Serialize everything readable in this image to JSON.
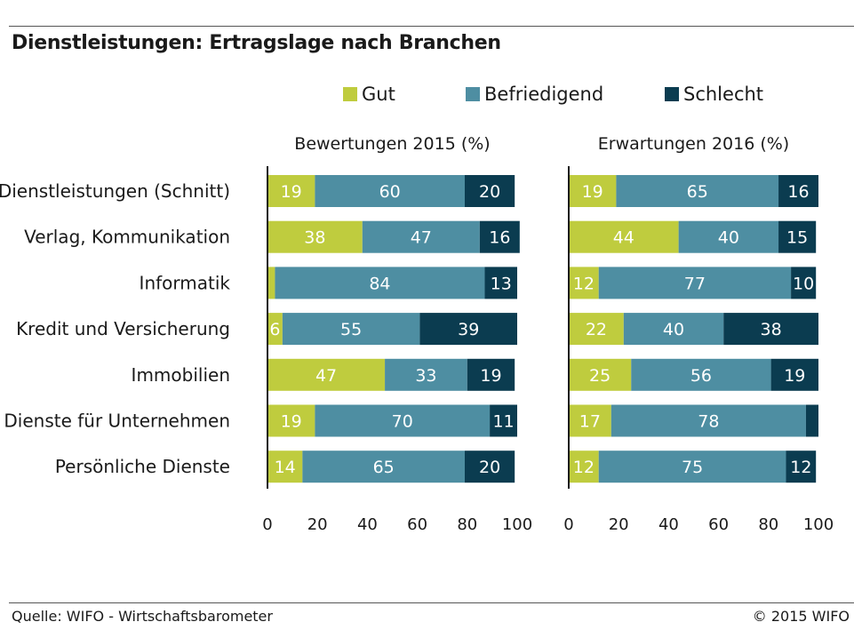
{
  "title": "Dienstleistungen: Ertragslage nach Branchen",
  "legend": [
    {
      "name": "Gut",
      "color": "#bfcc3e"
    },
    {
      "name": "Befriedigend",
      "color": "#4e8ea2"
    },
    {
      "name": "Schlecht",
      "color": "#0b3c50"
    }
  ],
  "chart_data": {
    "type": "bar",
    "orientation": "horizontal",
    "stacked": true,
    "categories": [
      "Dienstleistungen (Schnitt)",
      "Verlag, Kommunikation",
      "Informatik",
      "Kredit und Versicherung",
      "Immobilien",
      "Dienste für Unternehmen",
      "Persönliche Dienste"
    ],
    "xlim": [
      0,
      100
    ],
    "xticks": [
      "0",
      "20",
      "40",
      "60",
      "80",
      "100"
    ],
    "panels": [
      {
        "title": "Bewertungen 2015 (%)",
        "series": [
          {
            "name": "Gut",
            "values": [
              19,
              38,
              3,
              6,
              47,
              19,
              14
            ],
            "labels": [
              "19",
              "38",
              "",
              "6",
              "47",
              "19",
              "14"
            ]
          },
          {
            "name": "Befriedigend",
            "values": [
              60,
              47,
              84,
              55,
              33,
              70,
              65
            ],
            "labels": [
              "60",
              "47",
              "84",
              "55",
              "33",
              "70",
              "65"
            ]
          },
          {
            "name": "Schlecht",
            "values": [
              20,
              16,
              13,
              39,
              19,
              11,
              20
            ],
            "labels": [
              "20",
              "16",
              "13",
              "39",
              "19",
              "11",
              "20"
            ]
          }
        ]
      },
      {
        "title": "Erwartungen 2016 (%)",
        "series": [
          {
            "name": "Gut",
            "values": [
              19,
              44,
              12,
              22,
              25,
              17,
              12
            ],
            "labels": [
              "19",
              "44",
              "12",
              "22",
              "25",
              "17",
              "12"
            ]
          },
          {
            "name": "Befriedigend",
            "values": [
              65,
              40,
              77,
              40,
              56,
              78,
              75
            ],
            "labels": [
              "65",
              "40",
              "77",
              "40",
              "56",
              "78",
              "75"
            ]
          },
          {
            "name": "Schlecht",
            "values": [
              16,
              15,
              10,
              38,
              19,
              5,
              12
            ],
            "labels": [
              "16",
              "15",
              "10",
              "38",
              "19",
              "",
              "12"
            ]
          }
        ]
      }
    ]
  },
  "footer": {
    "source": "Quelle: WIFO - Wirtschaftsbarometer",
    "copyright": "© 2015 WIFO"
  }
}
